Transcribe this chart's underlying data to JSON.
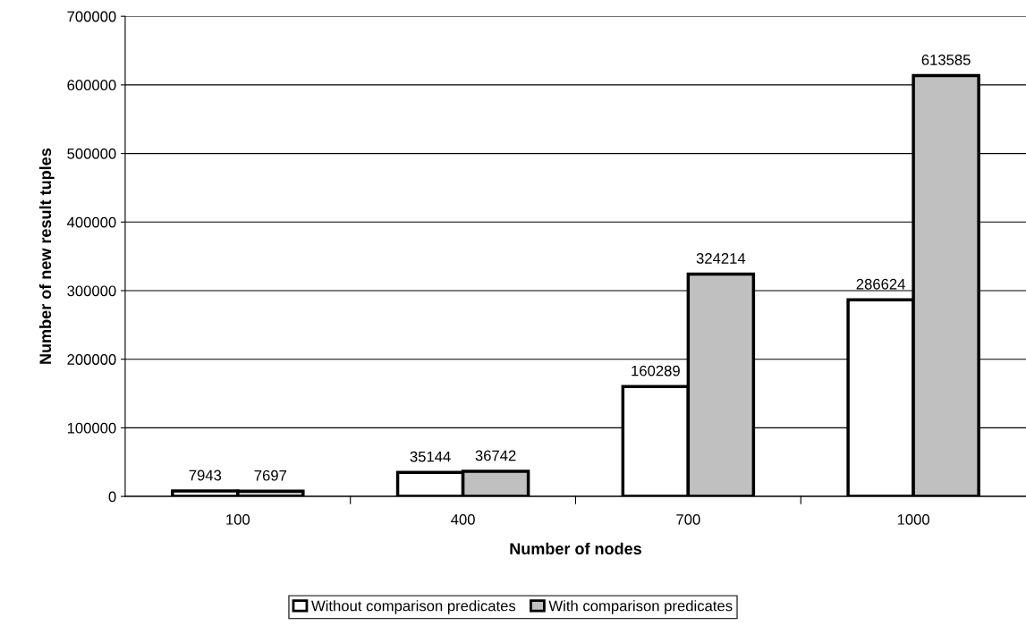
{
  "chart_data": {
    "type": "bar",
    "xlabel": "Number of nodes",
    "ylabel": "Number of new result tuples",
    "categories": [
      "100",
      "400",
      "700",
      "1000"
    ],
    "series": [
      {
        "name": "Without comparison predicates",
        "color": "#ffffff",
        "values": [
          7943,
          35144,
          160289,
          286624
        ]
      },
      {
        "name": "With comparison predicates",
        "color": "#c0c0c0",
        "values": [
          7697,
          36742,
          324214,
          613585
        ]
      }
    ],
    "ylim": [
      0,
      700000
    ],
    "yticks": [
      0,
      100000,
      200000,
      300000,
      400000,
      500000,
      600000,
      700000
    ],
    "grid": "y",
    "legend": "bottom",
    "data_labels": true
  }
}
